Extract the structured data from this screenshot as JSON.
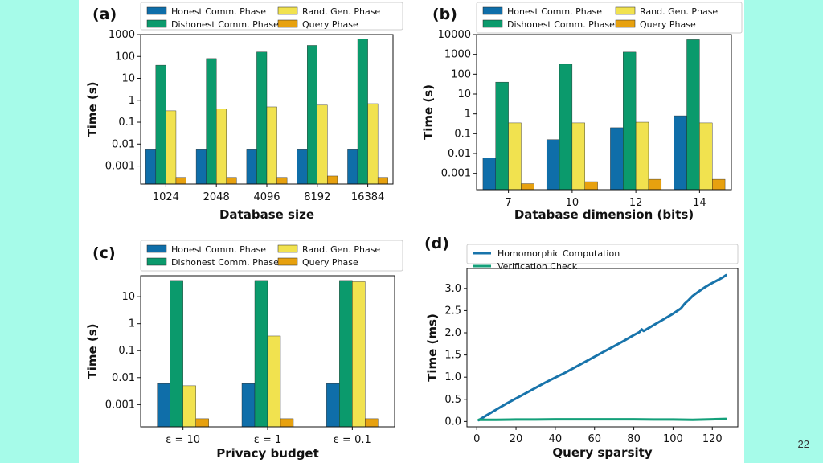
{
  "page": {
    "number": "22"
  },
  "colors": {
    "honest": "#0f6ea9",
    "dishonest": "#0b9a6c",
    "randgen": "#f1e24f",
    "query": "#e7a10f",
    "homomorphic": "#1874ab",
    "verification": "#14a07a"
  },
  "chart_data": [
    {
      "id": "a",
      "label": "(a)",
      "type": "bar",
      "yscale": "log",
      "xlabel": "Database size",
      "ylabel": "Time (s)",
      "ylim": [
        0.00015,
        1000
      ],
      "yticks": [
        0.001,
        0.01,
        0.1,
        1,
        10,
        100,
        1000
      ],
      "yticklabels": [
        "0.001",
        "0.01",
        "0.1",
        "1",
        "10",
        "100",
        "1000"
      ],
      "categories": [
        "1024",
        "2048",
        "4096",
        "8192",
        "16384"
      ],
      "legend": {
        "position": "top",
        "entries": [
          "Honest Comm. Phase",
          "Dishonest Comm. Phase",
          "Rand. Gen. Phase",
          "Query Phase"
        ]
      },
      "series": [
        {
          "name": "Honest Comm. Phase",
          "values": [
            0.006,
            0.006,
            0.006,
            0.006,
            0.006
          ]
        },
        {
          "name": "Dishonest Comm. Phase",
          "values": [
            40,
            80,
            160,
            320,
            640
          ]
        },
        {
          "name": "Rand. Gen. Phase",
          "values": [
            0.33,
            0.4,
            0.5,
            0.6,
            0.7
          ]
        },
        {
          "name": "Query Phase",
          "values": [
            0.0003,
            0.0003,
            0.0003,
            0.00035,
            0.0003
          ]
        }
      ]
    },
    {
      "id": "b",
      "label": "(b)",
      "type": "bar",
      "yscale": "log",
      "xlabel": "Database dimension (bits)",
      "ylabel": "Time (s)",
      "ylim": [
        0.00015,
        10000
      ],
      "yticks": [
        0.001,
        0.01,
        0.1,
        1,
        10,
        100,
        1000,
        10000
      ],
      "yticklabels": [
        "0.001",
        "0.01",
        "0.1",
        "1",
        "10",
        "100",
        "1000",
        "10000"
      ],
      "categories": [
        "7",
        "10",
        "12",
        "14"
      ],
      "legend": {
        "position": "top",
        "entries": [
          "Honest Comm. Phase",
          "Dishonest Comm. Phase",
          "Rand. Gen. Phase",
          "Query Phase"
        ]
      },
      "series": [
        {
          "name": "Honest Comm. Phase",
          "values": [
            0.006,
            0.05,
            0.2,
            0.8
          ]
        },
        {
          "name": "Dishonest Comm. Phase",
          "values": [
            40,
            320,
            1300,
            5500
          ]
        },
        {
          "name": "Rand. Gen. Phase",
          "values": [
            0.35,
            0.35,
            0.38,
            0.35
          ]
        },
        {
          "name": "Query Phase",
          "values": [
            0.0003,
            0.00038,
            0.0005,
            0.0005
          ]
        }
      ]
    },
    {
      "id": "c",
      "label": "(c)",
      "type": "bar",
      "yscale": "log",
      "xlabel": "Privacy budget",
      "ylabel": "Time (s)",
      "ylim": [
        0.00015,
        60
      ],
      "yticks": [
        0.001,
        0.01,
        0.1,
        1,
        10
      ],
      "yticklabels": [
        "0.001",
        "0.01",
        "0.1",
        "1",
        "10"
      ],
      "categories": [
        "ε = 10",
        "ε = 1",
        "ε = 0.1"
      ],
      "legend": {
        "position": "top",
        "entries": [
          "Honest Comm. Phase",
          "Dishonest Comm. Phase",
          "Rand. Gen. Phase",
          "Query Phase"
        ]
      },
      "series": [
        {
          "name": "Honest Comm. Phase",
          "values": [
            0.006,
            0.006,
            0.006
          ]
        },
        {
          "name": "Dishonest Comm. Phase",
          "values": [
            40,
            40,
            40
          ]
        },
        {
          "name": "Rand. Gen. Phase",
          "values": [
            0.005,
            0.35,
            36
          ]
        },
        {
          "name": "Query Phase",
          "values": [
            0.0003,
            0.0003,
            0.0003
          ]
        }
      ]
    },
    {
      "id": "d",
      "label": "(d)",
      "type": "line",
      "xlabel": "Query sparsity",
      "ylabel": "Time (ms)",
      "xlim": [
        -5,
        133
      ],
      "ylim": [
        -0.12,
        3.45
      ],
      "xticks": [
        0,
        20,
        40,
        60,
        80,
        100,
        120
      ],
      "xticklabels": [
        "0",
        "20",
        "40",
        "60",
        "80",
        "100",
        "120"
      ],
      "yticks": [
        0.0,
        0.5,
        1.0,
        1.5,
        2.0,
        2.5,
        3.0
      ],
      "yticklabels": [
        "0.0",
        "0.5",
        "1.0",
        "1.5",
        "2.0",
        "2.5",
        "3.0"
      ],
      "legend": {
        "position": "top",
        "entries": [
          "Homomorphic Computation",
          "Verification Check"
        ]
      },
      "series": [
        {
          "name": "Homomorphic Computation",
          "x": [
            1,
            5,
            10,
            15,
            20,
            25,
            30,
            35,
            40,
            45,
            50,
            55,
            60,
            65,
            70,
            75,
            80,
            83,
            84,
            85,
            90,
            95,
            100,
            104,
            106,
            108,
            110,
            113,
            116,
            119,
            122,
            125,
            127
          ],
          "y": [
            0.03,
            0.14,
            0.27,
            0.4,
            0.52,
            0.64,
            0.76,
            0.88,
            0.99,
            1.1,
            1.22,
            1.34,
            1.46,
            1.58,
            1.7,
            1.82,
            1.95,
            2.02,
            2.08,
            2.04,
            2.17,
            2.3,
            2.43,
            2.55,
            2.66,
            2.74,
            2.83,
            2.93,
            3.02,
            3.1,
            3.17,
            3.24,
            3.3
          ]
        },
        {
          "name": "Verification Check",
          "x": [
            1,
            10,
            20,
            30,
            40,
            50,
            60,
            70,
            80,
            90,
            100,
            110,
            120,
            127
          ],
          "y": [
            0.04,
            0.04,
            0.045,
            0.045,
            0.05,
            0.05,
            0.05,
            0.05,
            0.05,
            0.045,
            0.045,
            0.04,
            0.05,
            0.06
          ]
        }
      ]
    }
  ]
}
